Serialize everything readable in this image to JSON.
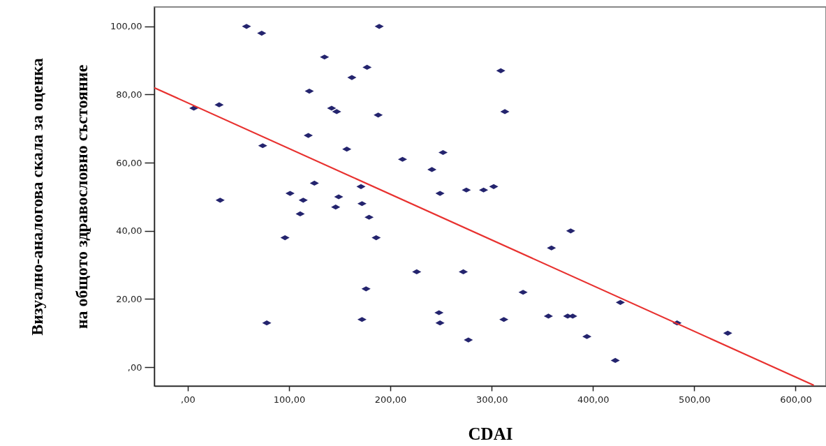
{
  "chart_data": {
    "type": "scatter",
    "xlabel": "CDAI",
    "ylabel": "Визуално-аналогова скала за оценка\nна общото здравословно състояние",
    "xlim": [
      -33,
      630
    ],
    "ylim": [
      -5.5,
      105.7
    ],
    "xticks": [
      {
        "value": 0,
        "label": ",00"
      },
      {
        "value": 100,
        "label": "100,00"
      },
      {
        "value": 200,
        "label": "200,00"
      },
      {
        "value": 300,
        "label": "300,00"
      },
      {
        "value": 400,
        "label": "400,00"
      },
      {
        "value": 500,
        "label": "500,00"
      },
      {
        "value": 600,
        "label": "600,00"
      }
    ],
    "yticks": [
      {
        "value": 0,
        "label": ",00"
      },
      {
        "value": 20,
        "label": "20,00"
      },
      {
        "value": 40,
        "label": "40,00"
      },
      {
        "value": 60,
        "label": "60,00"
      },
      {
        "value": 80,
        "label": "80,00"
      },
      {
        "value": 100,
        "label": "100,00"
      }
    ],
    "grid": false,
    "series": [
      {
        "marker": "diamond",
        "color": "#24246e",
        "x": [
          58,
          73,
          189,
          135,
          177,
          162,
          120,
          6,
          31,
          142,
          147,
          188,
          119,
          74,
          157,
          212,
          252,
          241,
          125,
          101,
          249,
          171,
          149,
          114,
          32,
          146,
          172,
          275,
          292,
          302,
          309,
          313,
          111,
          179,
          96,
          186,
          226,
          272,
          176,
          248,
          249,
          172,
          78,
          277,
          378,
          359,
          331,
          312,
          356,
          375,
          380,
          427,
          394,
          422,
          483,
          533
        ],
        "values": [
          100,
          98,
          100,
          91,
          88,
          85,
          81,
          76,
          77,
          76,
          75,
          74,
          68,
          65,
          64,
          61,
          63,
          58,
          54,
          51,
          51,
          53,
          50,
          49,
          49,
          47,
          48,
          52,
          52,
          53,
          87,
          75,
          45,
          44,
          38,
          38,
          28,
          28,
          23,
          16,
          13,
          14,
          13,
          8,
          40,
          35,
          22,
          14,
          15,
          15,
          15,
          19,
          9,
          2,
          13,
          10
        ]
      },
      {
        "type": "line",
        "color": "#e8312f",
        "x": [
          -33,
          618
        ],
        "values": [
          82,
          -5.3
        ]
      }
    ]
  }
}
